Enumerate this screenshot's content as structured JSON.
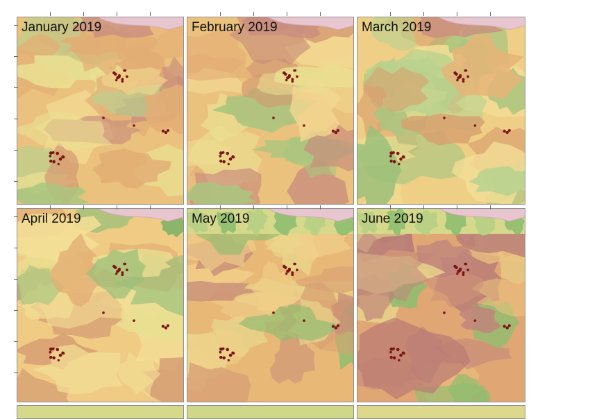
{
  "panels": [
    {
      "id": "jan",
      "title": "January 2019",
      "base": "#eac27d",
      "palette": [
        "#f2d891",
        "#e3ad74",
        "#d49a72",
        "#c88b7c",
        "#eadf91",
        "#b9cf8e"
      ]
    },
    {
      "id": "feb",
      "title": "February 2019",
      "base": "#eac27d",
      "palette": [
        "#f2d891",
        "#e3ad74",
        "#d49a72",
        "#c88b7c",
        "#eadf91",
        "#a9c57f"
      ]
    },
    {
      "id": "mar",
      "title": "March 2019",
      "base": "#efcf86",
      "palette": [
        "#f3de96",
        "#e5b578",
        "#d8a06f",
        "#a9c57f",
        "#eadf91",
        "#b7d28e"
      ]
    },
    {
      "id": "apr",
      "title": "April 2019",
      "base": "#efcb83",
      "palette": [
        "#f3de96",
        "#e3ad74",
        "#d49a72",
        "#c88b7c",
        "#eadf91",
        "#9cc07a"
      ]
    },
    {
      "id": "may",
      "title": "May 2019",
      "base": "#e8b877",
      "palette": [
        "#f0cf89",
        "#d9a174",
        "#c99077",
        "#e9d98d",
        "#8fbd6f",
        "#f0cf89"
      ]
    },
    {
      "id": "jun",
      "title": "June 2019",
      "base": "#e0a674",
      "palette": [
        "#ecc381",
        "#cf9378",
        "#c0867c",
        "#e9d98d",
        "#8fbd6f",
        "#b57a76"
      ]
    }
  ],
  "colors": {
    "marker": "#7a1414",
    "river": "#e8c6cf",
    "river_edge": "#d9a7b6"
  },
  "icons": {
    "marker": "sampling-point-icon"
  }
}
